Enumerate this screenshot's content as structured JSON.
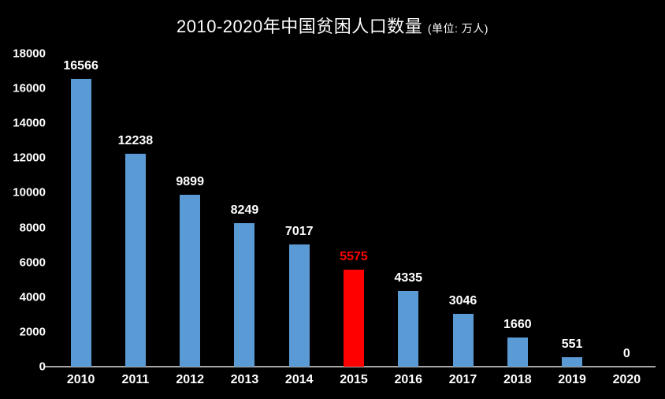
{
  "title": {
    "main": "2010-2020年中国贫困人口数量",
    "unit": "(单位: 万人)"
  },
  "colors": {
    "background": "#000000",
    "bar": "#5B9BD5",
    "highlight_bar": "#FF0000",
    "highlight_label": "#FF0000",
    "text": "#FFFFFF",
    "axis_line": "#A6A6A6"
  },
  "chart_data": {
    "type": "bar",
    "title": "2010-2020年中国贫困人口数量 (单位: 万人)",
    "categories": [
      "2010",
      "2011",
      "2012",
      "2013",
      "2014",
      "2015",
      "2016",
      "2017",
      "2018",
      "2019",
      "2020"
    ],
    "values": [
      16566,
      12238,
      9899,
      8249,
      7017,
      5575,
      4335,
      3046,
      1660,
      551,
      0
    ],
    "value_labels": [
      "16566",
      "12238",
      "9899",
      "8249",
      "7017",
      "5575",
      "4335",
      "3046",
      "1660",
      "551",
      "0"
    ],
    "highlight_index": 5,
    "xlabel": "",
    "ylabel": "",
    "ylim": [
      0,
      18000
    ],
    "ytick_step": 2000,
    "ytick_labels": [
      "0",
      "2000",
      "4000",
      "6000",
      "8000",
      "10000",
      "12000",
      "14000",
      "16000",
      "18000"
    ],
    "grid": false,
    "legend": false,
    "data_labels_shown": true
  }
}
